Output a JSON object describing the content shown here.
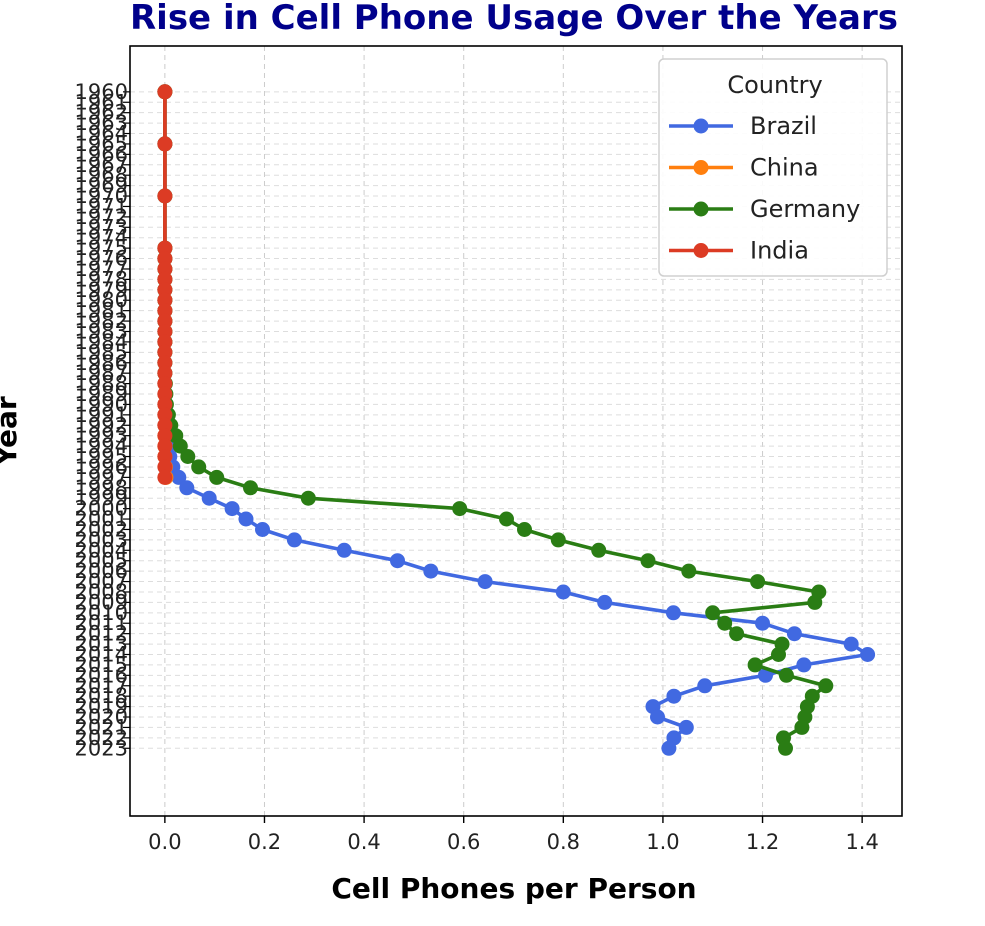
{
  "chart_data": {
    "type": "line",
    "title": "Rise in Cell Phone Usage Over the Years",
    "xlabel": "Cell Phones per Person",
    "ylabel": "Year",
    "xlim": [
      -0.07,
      1.48
    ],
    "ylim": [
      2029.5,
      1955.6
    ],
    "xticks": [
      0.0,
      0.2,
      0.4,
      0.6,
      0.8,
      1.0,
      1.2,
      1.4
    ],
    "xtick_labels": [
      "0.0",
      "0.2",
      "0.4",
      "0.6",
      "0.8",
      "1.0",
      "1.2",
      "1.4"
    ],
    "ytick_labels": [
      "1960",
      "1961",
      "1962",
      "1963",
      "1964",
      "1965",
      "1966",
      "1967",
      "1968",
      "1969",
      "1970",
      "1971",
      "1972",
      "1973",
      "1974",
      "1975",
      "1976",
      "1977",
      "1978",
      "1979",
      "1980",
      "1981",
      "1982",
      "1983",
      "1984",
      "1985",
      "1986",
      "1987",
      "1988",
      "1989",
      "1990",
      "1991",
      "1992",
      "1993",
      "1994",
      "1995",
      "1996",
      "1997",
      "1998",
      "1999",
      "2000",
      "2001",
      "2002",
      "2003",
      "2004",
      "2005",
      "2006",
      "2007",
      "2008",
      "2009",
      "2010",
      "2011",
      "2012",
      "2013",
      "2014",
      "2015",
      "2016",
      "2017",
      "2018",
      "2019",
      "2020",
      "2021",
      "2022",
      "2023"
    ],
    "grid": true,
    "legend_title": "Country",
    "legend_position": "upper right",
    "series": [
      {
        "name": "Brazil",
        "color": "#4169E1",
        "years": [
          1960,
          1965,
          1970,
          1975,
          1976,
          1977,
          1978,
          1979,
          1980,
          1981,
          1982,
          1983,
          1984,
          1985,
          1986,
          1987,
          1988,
          1989,
          1990,
          1991,
          1992,
          1993,
          1994,
          1995,
          1996,
          1997,
          1998,
          1999,
          2000,
          2001,
          2002,
          2003,
          2004,
          2005,
          2006,
          2007,
          2008,
          2009,
          2010,
          2011,
          2012,
          2013,
          2014,
          2015,
          2016,
          2017,
          2018,
          2019,
          2020,
          2021,
          2022,
          2023
        ],
        "values": [
          0,
          0,
          0,
          0,
          0,
          0,
          0,
          0,
          0,
          0,
          0,
          0,
          0,
          0,
          0,
          0,
          0,
          0,
          0,
          0,
          0,
          0.001,
          0.005,
          0.01,
          0.016,
          0.028,
          0.044,
          0.089,
          0.135,
          0.163,
          0.196,
          0.26,
          0.36,
          0.467,
          0.534,
          0.643,
          0.8,
          0.883,
          1.021,
          1.2,
          1.264,
          1.378,
          1.411,
          1.283,
          1.206,
          1.084,
          1.022,
          0.98,
          0.989,
          1.047,
          1.022,
          1.012
        ]
      },
      {
        "name": "China",
        "color": "#ff7f0e",
        "years": [
          1960,
          1965,
          1970,
          1975,
          1976,
          1977,
          1978,
          1979,
          1980,
          1981,
          1982,
          1983,
          1984,
          1985,
          1986,
          1987,
          1988,
          1989,
          1990,
          1991,
          1992,
          1993,
          1994,
          1995,
          1996,
          1997
        ],
        "values": [
          0,
          0,
          0,
          0,
          0,
          0,
          0,
          0,
          0,
          0,
          0,
          0,
          0,
          0,
          0,
          0,
          0,
          0,
          0,
          0,
          0,
          0,
          0,
          0,
          0.001,
          0.002
        ]
      },
      {
        "name": "Germany",
        "color": "#2a7d14",
        "years": [
          1960,
          1965,
          1970,
          1975,
          1976,
          1977,
          1978,
          1979,
          1980,
          1981,
          1982,
          1983,
          1984,
          1985,
          1986,
          1987,
          1988,
          1989,
          1990,
          1991,
          1992,
          1993,
          1994,
          1995,
          1996,
          1997,
          1998,
          1999,
          2000,
          2001,
          2002,
          2003,
          2004,
          2005,
          2006,
          2007,
          2008,
          2009,
          2010,
          2011,
          2012,
          2013,
          2014,
          2015,
          2016,
          2017,
          2018,
          2019,
          2020,
          2021,
          2022,
          2023
        ],
        "values": [
          0,
          0,
          0,
          0,
          0,
          0,
          0,
          0,
          0,
          0,
          0,
          0,
          0,
          0,
          0,
          0,
          0.001,
          0.002,
          0.003,
          0.007,
          0.012,
          0.022,
          0.031,
          0.046,
          0.068,
          0.104,
          0.172,
          0.288,
          0.592,
          0.686,
          0.722,
          0.79,
          0.871,
          0.97,
          1.052,
          1.19,
          1.313,
          1.305,
          1.1,
          1.124,
          1.148,
          1.239,
          1.232,
          1.185,
          1.248,
          1.327,
          1.3,
          1.29,
          1.285,
          1.279,
          1.242,
          1.246
        ]
      },
      {
        "name": "India",
        "color": "#dc3b24",
        "years": [
          1960,
          1965,
          1970,
          1975,
          1976,
          1977,
          1978,
          1979,
          1980,
          1981,
          1982,
          1983,
          1984,
          1985,
          1986,
          1987,
          1988,
          1989,
          1990,
          1991,
          1992,
          1993,
          1994,
          1995,
          1996,
          1997
        ],
        "values": [
          0,
          0,
          0,
          0,
          0,
          0,
          0,
          0,
          0,
          0,
          0,
          0,
          0,
          0,
          0,
          0,
          0,
          0,
          0,
          0,
          0,
          0,
          0,
          0,
          0,
          0
        ]
      }
    ]
  }
}
